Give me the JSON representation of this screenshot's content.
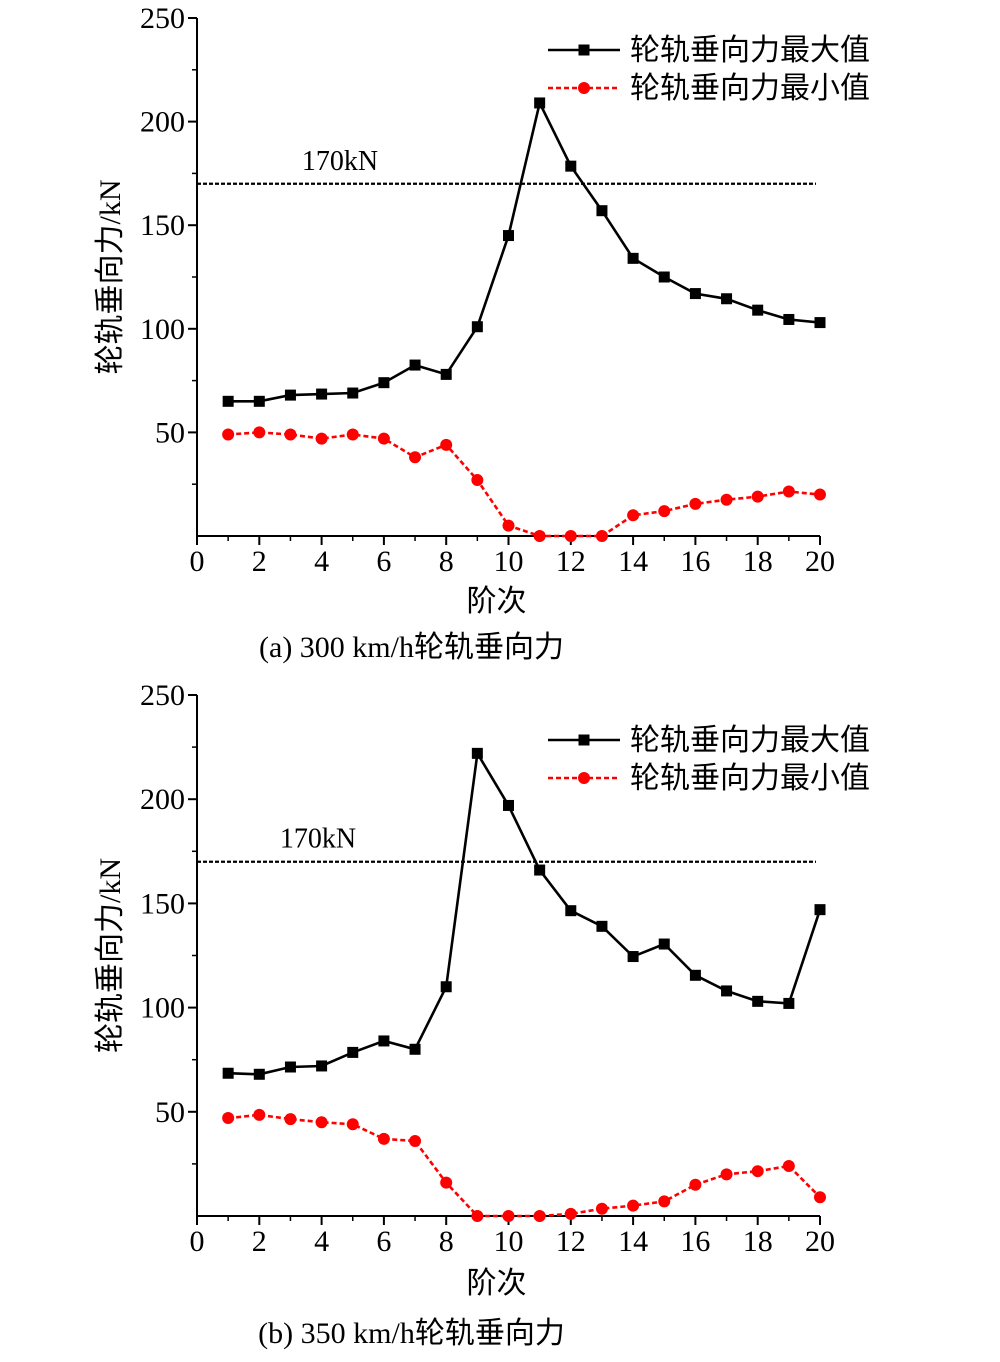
{
  "chart_data": [
    {
      "type": "line",
      "caption": "(a) 300 km/h轮轨垂向力",
      "xlabel": "阶次",
      "ylabel": "轮轨垂向力/kN",
      "xlim": [
        0,
        20
      ],
      "ylim": [
        0,
        250
      ],
      "x_ticks": [
        0,
        2,
        4,
        6,
        8,
        10,
        12,
        14,
        16,
        18,
        20
      ],
      "y_ticks": [
        50,
        100,
        150,
        200,
        250
      ],
      "reference_line": {
        "value": 170,
        "label": "170kN"
      },
      "legend_position": "top-right",
      "x": [
        1,
        2,
        3,
        4,
        5,
        6,
        7,
        8,
        9,
        10,
        11,
        12,
        13,
        14,
        15,
        16,
        17,
        18,
        19,
        20
      ],
      "series": [
        {
          "name": "轮轨垂向力最大值",
          "color": "#000000",
          "marker": "square",
          "dash": "solid",
          "values": [
            65,
            65,
            68,
            68.5,
            69,
            74,
            82.5,
            78,
            101,
            145,
            209,
            178.5,
            157,
            134,
            125,
            117,
            114.5,
            109,
            104.5,
            103
          ]
        },
        {
          "name": "轮轨垂向力最小值",
          "color": "#ff0000",
          "marker": "circle",
          "dash": "dashed",
          "values": [
            49,
            50,
            49,
            47,
            49,
            47,
            38,
            44,
            27,
            5,
            0,
            0,
            0,
            10,
            12,
            15.5,
            17.5,
            19,
            21.5,
            20
          ]
        }
      ]
    },
    {
      "type": "line",
      "caption": "(b) 350 km/h轮轨垂向力",
      "xlabel": "阶次",
      "ylabel": "轮轨垂向力/kN",
      "xlim": [
        0,
        20
      ],
      "ylim": [
        0,
        250
      ],
      "x_ticks": [
        0,
        2,
        4,
        6,
        8,
        10,
        12,
        14,
        16,
        18,
        20
      ],
      "y_ticks": [
        50,
        100,
        150,
        200,
        250
      ],
      "reference_line": {
        "value": 170,
        "label": "170kN"
      },
      "legend_position": "top-right",
      "x": [
        1,
        2,
        3,
        4,
        5,
        6,
        7,
        8,
        9,
        10,
        11,
        12,
        13,
        14,
        15,
        16,
        17,
        18,
        19,
        20
      ],
      "series": [
        {
          "name": "轮轨垂向力最大值",
          "color": "#000000",
          "marker": "square",
          "dash": "solid",
          "values": [
            68.5,
            68,
            71.5,
            72,
            78.5,
            84,
            80,
            110,
            222,
            197,
            166,
            146.5,
            139,
            124.5,
            130.5,
            115.5,
            108,
            103,
            102,
            147
          ]
        },
        {
          "name": "轮轨垂向力最小值",
          "color": "#ff0000",
          "marker": "circle",
          "dash": "dashed",
          "values": [
            47,
            48.5,
            46.5,
            45,
            44,
            37,
            36,
            16,
            0,
            0,
            0,
            1,
            3.5,
            5,
            7,
            15,
            20,
            21.5,
            24,
            9
          ]
        }
      ]
    }
  ]
}
